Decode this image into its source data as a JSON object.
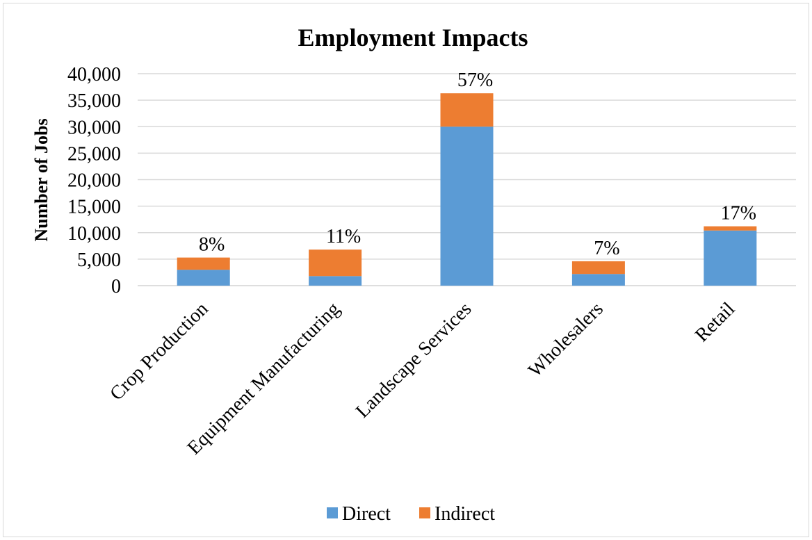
{
  "chart_data": {
    "type": "bar",
    "stacked": true,
    "title": "Employment Impacts",
    "xlabel": "",
    "ylabel": "Number of Jobs",
    "ylim": [
      0,
      40000
    ],
    "yticks": [
      "0",
      "5,000",
      "10,000",
      "15,000",
      "20,000",
      "25,000",
      "30,000",
      "35,000",
      "40,000"
    ],
    "ytick_values": [
      0,
      5000,
      10000,
      15000,
      20000,
      25000,
      30000,
      35000,
      40000
    ],
    "categories": [
      "Crop Production",
      "Equipment Manufacturing",
      "Landscape Services",
      "Wholesalers",
      "Retail"
    ],
    "series": [
      {
        "name": "Direct",
        "values": [
          3000,
          1800,
          30000,
          2200,
          10400
        ],
        "color": "#5B9BD5"
      },
      {
        "name": "Indirect",
        "values": [
          2300,
          5000,
          6300,
          2400,
          800
        ],
        "color": "#ED7D31"
      }
    ],
    "data_labels": [
      "8%",
      "11%",
      "57%",
      "7%",
      "17%"
    ],
    "grid": true,
    "legend": "bottom-center"
  }
}
